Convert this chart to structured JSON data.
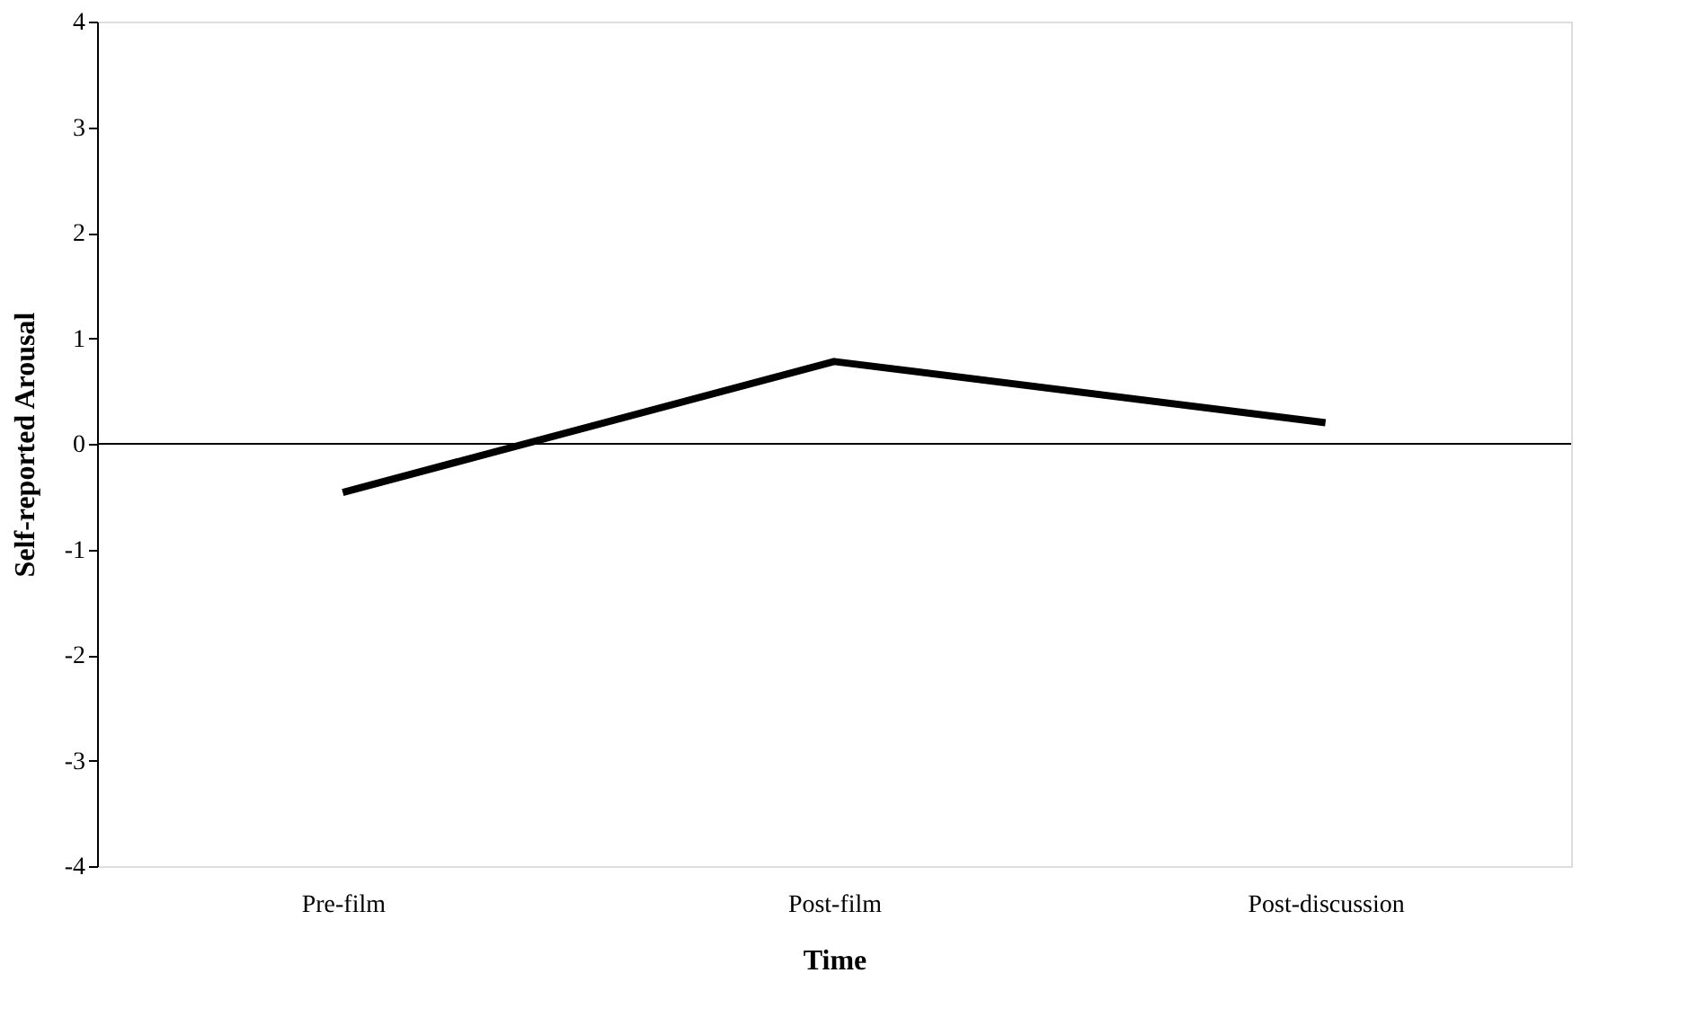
{
  "chart_data": {
    "type": "line",
    "xlabel": "Time",
    "ylabel": "Self-reported Arousal",
    "categories": [
      "Pre-film",
      "Post-film",
      "Post-discussion"
    ],
    "series": [
      {
        "color": "#000000",
        "values": [
          -0.46,
          0.78,
          0.2
        ]
      }
    ],
    "ylim": [
      -4,
      4
    ],
    "yticks": [
      -4,
      -3,
      -2,
      -1,
      0,
      1,
      2,
      3,
      4
    ],
    "ref_lines": [
      {
        "axis": "y",
        "value": 0,
        "color": "#000000"
      }
    ],
    "grid": false,
    "marker": "none",
    "line_style": "solid"
  }
}
